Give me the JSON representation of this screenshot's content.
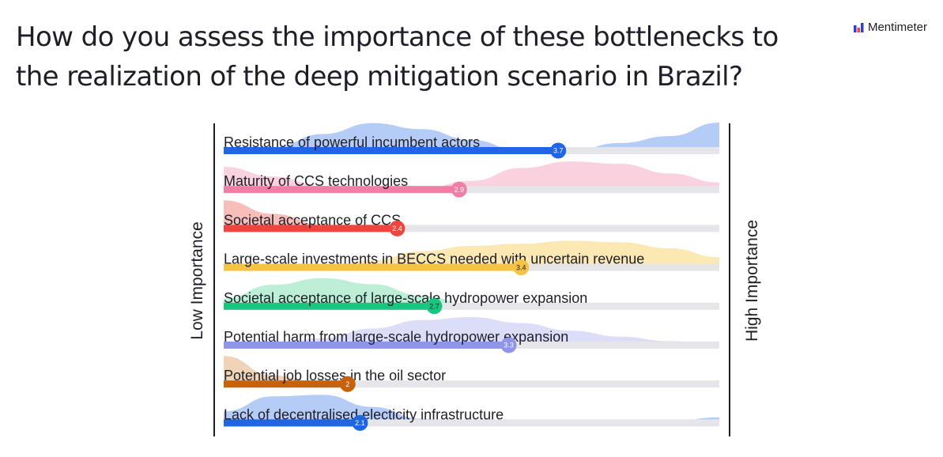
{
  "page": {
    "title": "How do you assess the importance of these bottlenecks to the realization of the deep mitigation scenario in Brazil?",
    "brand": "Mentimeter"
  },
  "chart_data": {
    "type": "scale",
    "min": 1,
    "max": 5,
    "left_label": "Low Importance",
    "right_label": "High Importance",
    "items": [
      {
        "label": "Resistance of powerful incumbent actors",
        "value": 3.7,
        "value_label": "3.7",
        "color": "#1f66e5",
        "fill": "#a8c4f4",
        "value_text_color": "#ffffff",
        "dist": [
          0.02,
          0.18,
          0.62,
          0.98,
          0.78,
          0.42,
          0.05,
          0.06,
          0.32,
          0.55,
          1.0
        ]
      },
      {
        "label": "Maturity of CCS technologies",
        "value": 2.9,
        "value_label": "2.9",
        "color": "#f07fa6",
        "fill": "#f9c9d8",
        "value_text_color": "#ffffff",
        "dist": [
          0.82,
          0.5,
          0.18,
          0.06,
          0.1,
          0.35,
          0.78,
          1.0,
          0.92,
          0.6,
          0.3
        ]
      },
      {
        "label": "Societal acceptance of CCS",
        "value": 2.4,
        "value_label": "2.4",
        "color": "#f2443f",
        "fill": "#f8b3ae",
        "value_text_color": "#ffffff",
        "dist": [
          1.0,
          0.55,
          0.18,
          0.03,
          0.0,
          0.0,
          0.0,
          0.0,
          0.0,
          0.0,
          0.0
        ]
      },
      {
        "label": "Large-scale investments in BECCS needed with uncertain revenue",
        "value": 3.4,
        "value_label": "3.4",
        "color": "#f6c344",
        "fill": "#fbe4a6",
        "value_text_color": "#1e1e28",
        "dist": [
          0.0,
          0.0,
          0.08,
          0.3,
          0.6,
          0.78,
          0.85,
          0.95,
          0.9,
          0.7,
          0.4
        ]
      },
      {
        "label": "Societal acceptance of large-scale hydropower expansion",
        "value": 2.7,
        "value_label": "2.7",
        "color": "#18c77f",
        "fill": "#b2eccf",
        "value_text_color": "#1e1e28",
        "dist": [
          0.32,
          0.78,
          1.0,
          0.8,
          0.42,
          0.12,
          0.02,
          0.0,
          0.0,
          0.0,
          0.0
        ]
      },
      {
        "label": "Potential harm from large-scale hydropower expansion",
        "value": 3.3,
        "value_label": "3.3",
        "color": "#8f96ea",
        "fill": "#d6d8f8",
        "value_text_color": "#ffffff",
        "dist": [
          0.05,
          0.1,
          0.3,
          0.62,
          0.9,
          1.0,
          0.8,
          0.55,
          0.35,
          0.2,
          0.1
        ]
      },
      {
        "label": "Potential job losses in the oil sector",
        "value": 2.0,
        "value_label": "2",
        "color": "#c7620a",
        "fill": "#efcdaa",
        "value_text_color": "#ffffff",
        "dist": [
          1.0,
          0.35,
          0.05,
          0.0,
          0.0,
          0.0,
          0.05,
          0.1,
          0.12,
          0.1,
          0.08
        ]
      },
      {
        "label": "Lack of decentralised electicity infrastructure",
        "value": 2.1,
        "value_label": "2.1",
        "color": "#1f66e5",
        "fill": "#a8c4f4",
        "value_text_color": "#ffffff",
        "dist": [
          0.45,
          0.95,
          1.0,
          0.6,
          0.2,
          0.05,
          0.0,
          0.0,
          0.05,
          0.12,
          0.25
        ]
      }
    ]
  }
}
